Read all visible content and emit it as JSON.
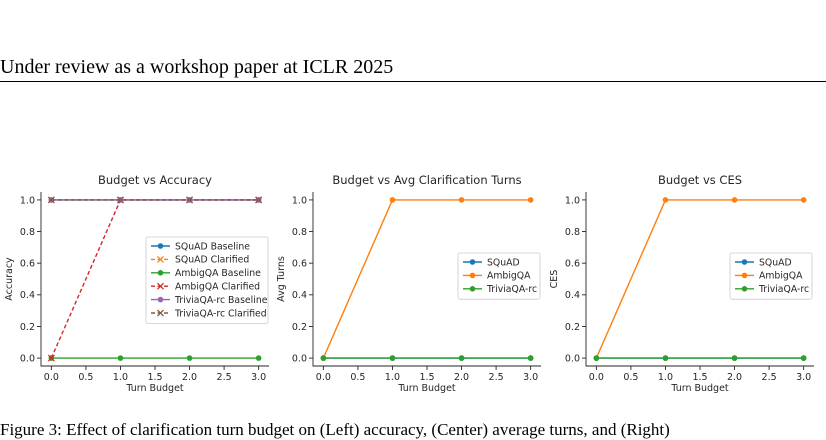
{
  "header": {
    "text": "Under review as a workshop paper at ICLR 2025"
  },
  "caption": {
    "text": "Figure 3: Effect of clarification turn budget on (Left) accuracy, (Center) average turns, and (Right)"
  },
  "chart_data": [
    {
      "type": "line",
      "title": "Budget vs Accuracy",
      "xlabel": "Turn Budget",
      "ylabel": "Accuracy",
      "x": [
        0,
        1,
        2,
        3
      ],
      "xticks": [
        "0.0",
        "0.5",
        "1.0",
        "1.5",
        "2.0",
        "2.5",
        "3.0"
      ],
      "yticks": [
        "0.0",
        "0.2",
        "0.4",
        "0.6",
        "0.8",
        "1.0"
      ],
      "xlim": [
        -0.15,
        3.15
      ],
      "ylim": [
        -0.05,
        1.05
      ],
      "legend": "center-right",
      "series": [
        {
          "name": "SQuAD Baseline",
          "values": [
            1,
            1,
            1,
            1
          ],
          "color": "#1f77b4",
          "style": "solid",
          "marker": "o"
        },
        {
          "name": "SQuAD Clarified",
          "values": [
            1,
            1,
            1,
            1
          ],
          "color": "#ff7f0e",
          "style": "dashed",
          "marker": "x"
        },
        {
          "name": "AmbigQA Baseline",
          "values": [
            0,
            0,
            0,
            0
          ],
          "color": "#2ca02c",
          "style": "solid",
          "marker": "o"
        },
        {
          "name": "AmbigQA Clarified",
          "values": [
            0,
            1,
            1,
            1
          ],
          "color": "#d62728",
          "style": "dashed",
          "marker": "x"
        },
        {
          "name": "TriviaQA-rc Baseline",
          "values": [
            1,
            1,
            1,
            1
          ],
          "color": "#9467bd",
          "style": "solid",
          "marker": "o"
        },
        {
          "name": "TriviaQA-rc Clarified",
          "values": [
            1,
            1,
            1,
            1
          ],
          "color": "#8c564b",
          "style": "dashed",
          "marker": "x"
        }
      ]
    },
    {
      "type": "line",
      "title": "Budget vs Avg Clarification Turns",
      "xlabel": "Turn Budget",
      "ylabel": "Avg Turns",
      "x": [
        0,
        1,
        2,
        3
      ],
      "xticks": [
        "0.0",
        "0.5",
        "1.0",
        "1.5",
        "2.0",
        "2.5",
        "3.0"
      ],
      "yticks": [
        "0.0",
        "0.2",
        "0.4",
        "0.6",
        "0.8",
        "1.0"
      ],
      "xlim": [
        -0.15,
        3.15
      ],
      "ylim": [
        -0.05,
        1.05
      ],
      "legend": "center-right",
      "series": [
        {
          "name": "SQuAD",
          "values": [
            0,
            0,
            0,
            0
          ],
          "color": "#1f77b4",
          "style": "solid",
          "marker": "o"
        },
        {
          "name": "AmbigQA",
          "values": [
            0,
            1,
            1,
            1
          ],
          "color": "#ff7f0e",
          "style": "solid",
          "marker": "o"
        },
        {
          "name": "TriviaQA-rc",
          "values": [
            0,
            0,
            0,
            0
          ],
          "color": "#2ca02c",
          "style": "solid",
          "marker": "o"
        }
      ]
    },
    {
      "type": "line",
      "title": "Budget vs CES",
      "xlabel": "Turn Budget",
      "ylabel": "CES",
      "x": [
        0,
        1,
        2,
        3
      ],
      "xticks": [
        "0.0",
        "0.5",
        "1.0",
        "1.5",
        "2.0",
        "2.5",
        "3.0"
      ],
      "yticks": [
        "0.0",
        "0.2",
        "0.4",
        "0.6",
        "0.8",
        "1.0"
      ],
      "xlim": [
        -0.15,
        3.15
      ],
      "ylim": [
        -0.05,
        1.05
      ],
      "legend": "center-right",
      "series": [
        {
          "name": "SQuAD",
          "values": [
            0,
            0,
            0,
            0
          ],
          "color": "#1f77b4",
          "style": "solid",
          "marker": "o"
        },
        {
          "name": "AmbigQA",
          "values": [
            0,
            1,
            1,
            1
          ],
          "color": "#ff7f0e",
          "style": "solid",
          "marker": "o"
        },
        {
          "name": "TriviaQA-rc",
          "values": [
            0,
            0,
            0,
            0
          ],
          "color": "#2ca02c",
          "style": "solid",
          "marker": "o"
        }
      ]
    }
  ]
}
